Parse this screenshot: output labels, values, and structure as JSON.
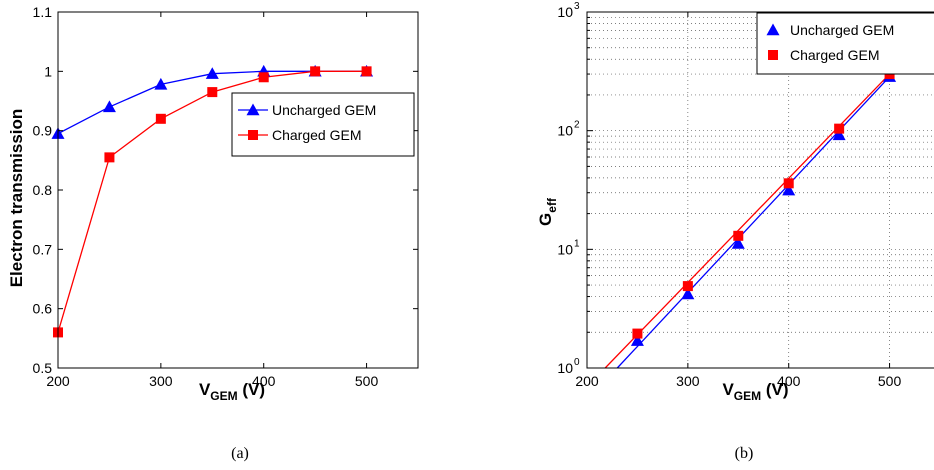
{
  "chart_data": [
    {
      "type": "line",
      "caption": "(a)",
      "xlabel_main": "V",
      "xlabel_sub": "GEM",
      "xlabel_unit": " (V)",
      "ylabel": "Electron transmission",
      "xlim": [
        200,
        550
      ],
      "ylim": [
        0.5,
        1.1
      ],
      "xticks": [
        200,
        300,
        400,
        500
      ],
      "yticks": [
        0.5,
        0.6,
        0.7,
        0.8,
        0.9,
        1,
        1.1
      ],
      "ytick_labels": [
        "0.5",
        "0.6",
        "0.7",
        "0.8",
        "0.9",
        "1",
        "1.1"
      ],
      "yscale": "linear",
      "grid": false,
      "legend": "center-right",
      "series": [
        {
          "name": "Uncharged GEM",
          "color": "#0000ff",
          "marker": "triangle",
          "x": [
            200,
            250,
            300,
            350,
            400,
            450,
            500
          ],
          "y": [
            0.895,
            0.94,
            0.978,
            0.996,
            1.0,
            1.0,
            1.0
          ]
        },
        {
          "name": "Charged GEM",
          "color": "#ff0000",
          "marker": "square",
          "x": [
            200,
            250,
            300,
            350,
            400,
            450,
            500
          ],
          "y": [
            0.56,
            0.855,
            0.92,
            0.965,
            0.99,
            1.0,
            1.0
          ]
        }
      ]
    },
    {
      "type": "line",
      "caption": "(b)",
      "xlabel_main": "V",
      "xlabel_sub": "GEM",
      "xlabel_unit": " (V)",
      "ylabel_main": "G",
      "ylabel_sub": "eff",
      "xlim": [
        200,
        550
      ],
      "ylim": [
        1,
        1000
      ],
      "xticks": [
        200,
        300,
        400,
        500
      ],
      "yscale": "log",
      "yticks": [
        1,
        10,
        100,
        1000
      ],
      "ytick_base": "10",
      "ytick_exponents": [
        "0",
        "1",
        "2",
        "3"
      ],
      "grid": true,
      "legend": "top-right",
      "series": [
        {
          "name": "Uncharged GEM",
          "color": "#0000ff",
          "marker": "triangle",
          "x": [
            250,
            300,
            350,
            400,
            450,
            500
          ],
          "y": [
            1.7,
            4.2,
            11.2,
            31.5,
            92,
            285
          ],
          "fit": {
            "x": [
              230,
              500
            ],
            "y": [
              1.0,
              285
            ]
          }
        },
        {
          "name": "Charged GEM",
          "color": "#ff0000",
          "marker": "square",
          "x": [
            250,
            300,
            350,
            400,
            450,
            500
          ],
          "y": [
            1.95,
            4.9,
            13,
            36,
            104,
            300
          ],
          "fit": {
            "x": [
              218,
              500
            ],
            "y": [
              1.0,
              300
            ]
          }
        }
      ]
    }
  ]
}
